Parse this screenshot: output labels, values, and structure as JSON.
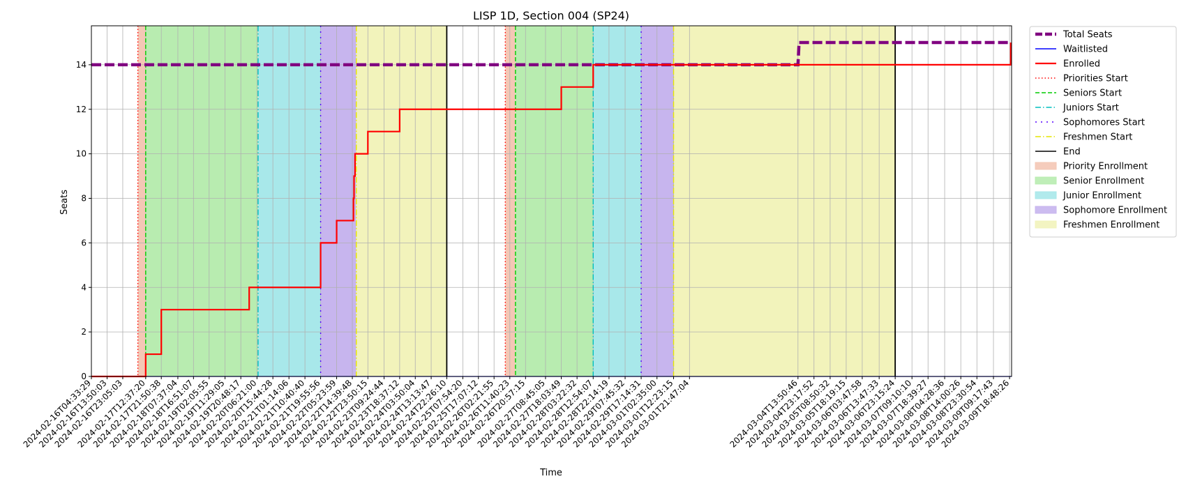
{
  "chart_data": {
    "type": "line",
    "title": "LISP 1D, Section 004 (SP24)",
    "xlabel": "Time",
    "ylabel": "Seats",
    "ylim": [
      0,
      15.75
    ],
    "xlim": [
      "2024-02-16T04:33:29",
      "2024-03-09T20:00:00"
    ],
    "yticks": [
      0,
      2,
      4,
      6,
      8,
      10,
      12,
      14
    ],
    "xticks": [
      "2024-02-16T04:33:29",
      "2024-02-16T13:50:03",
      "2024-02-16T23:05:03",
      "2024-02-17T12:37:20",
      "2024-02-17T21:50:38",
      "2024-02-18T07:37:04",
      "2024-02-18T16:51:07",
      "2024-02-19T02:05:55",
      "2024-02-19T11:29:05",
      "2024-02-19T20:48:17",
      "2024-02-20T06:21:00",
      "2024-02-20T15:44:28",
      "2024-02-21T01:14:06",
      "2024-02-21T10:40:40",
      "2024-02-21T19:55:56",
      "2024-02-22T05:23:59",
      "2024-02-22T14:39:48",
      "2024-02-22T23:50:15",
      "2024-02-23T09:24:44",
      "2024-02-23T18:37:12",
      "2024-02-24T03:50:04",
      "2024-02-24T13:13:47",
      "2024-02-24T22:26:10",
      "2024-02-25T07:54:20",
      "2024-02-25T17:07:12",
      "2024-02-26T02:21:55",
      "2024-02-26T11:40:23",
      "2024-02-26T20:57:15",
      "2024-02-27T08:45:05",
      "2024-02-27T18:03:49",
      "2024-02-28T03:22:32",
      "2024-02-28T12:54:07",
      "2024-02-28T22:14:19",
      "2024-02-29T07:45:32",
      "2024-02-29T17:14:31",
      "2024-03-01T02:35:00",
      "2024-03-01T12:23:15",
      "2024-03-01T21:47:04",
      "2024-03-04T13:50:46",
      "2024-03-04T23:17:52",
      "2024-03-05T08:50:32",
      "2024-03-05T18:19:15",
      "2024-03-06T03:47:58",
      "2024-03-06T13:47:33",
      "2024-03-06T23:15:24",
      "2024-03-07T09:10:10",
      "2024-03-07T18:39:27",
      "2024-03-08T04:28:36",
      "2024-03-08T14:00:26",
      "2024-03-08T23:30:54",
      "2024-03-09T09:17:43",
      "2024-03-09T18:48:26"
    ],
    "series": [
      {
        "name": "Total Seats",
        "color": "#800080",
        "style": "dashed-thick",
        "x": [
          "2024-02-16T04:33:29",
          "2024-03-04T13:50:46",
          "2024-03-04T14:30:00",
          "2024-03-09T20:00:00"
        ],
        "y": [
          14,
          14,
          15,
          15
        ]
      },
      {
        "name": "Waitlisted",
        "color": "#0000ff",
        "style": "solid",
        "x": [
          "2024-02-16T04:33:29",
          "2024-03-09T20:00:00"
        ],
        "y": [
          0,
          0
        ]
      },
      {
        "name": "Enrolled",
        "color": "#ff0000",
        "style": "step",
        "x": [
          "2024-02-16T04:33:29",
          "2024-02-17T12:37:20",
          "2024-02-17T13:30:00",
          "2024-02-17T21:50:38",
          "2024-02-20T01:45:00",
          "2024-02-21T19:55:56",
          "2024-02-22T05:23:59",
          "2024-02-22T15:20:00",
          "2024-02-22T15:40:00",
          "2024-02-22T16:15:00",
          "2024-02-22T23:50:15",
          "2024-02-23T18:37:12",
          "2024-02-27T18:03:49",
          "2024-02-28T12:54:07",
          "2024-03-09T19:30:00"
        ],
        "y": [
          0,
          1,
          1,
          3,
          4,
          6,
          7,
          8,
          9,
          10,
          11,
          12,
          13,
          14,
          15
        ]
      }
    ],
    "markers": [
      {
        "name": "Priorities Start",
        "color": "#ff0000",
        "style": "dotted"
      },
      {
        "name": "Seniors Start",
        "color": "#00cc00",
        "style": "dashed"
      },
      {
        "name": "Juniors Start",
        "color": "#00bfbf",
        "style": "dashdot"
      },
      {
        "name": "Sophomores Start",
        "color": "#5500ff",
        "style": "loosedash"
      },
      {
        "name": "Freshmen Start",
        "color": "#e6e600",
        "style": "dashdot"
      },
      {
        "name": "End",
        "color": "#000000",
        "style": "solid"
      }
    ],
    "regions": [
      {
        "name": "Priority Enrollment",
        "color": "#f4c7b5"
      },
      {
        "name": "Senior Enrollment",
        "color": "#b8ecb0"
      },
      {
        "name": "Junior Enrollment",
        "color": "#a8e8ea"
      },
      {
        "name": "Sophomore Enrollment",
        "color": "#c7b5ee"
      },
      {
        "name": "Freshmen Enrollment",
        "color": "#f2f3bb"
      }
    ],
    "periods": [
      {
        "priorities_start": "2024-02-17T08:00:00",
        "seniors_start": "2024-02-17T12:37:20",
        "juniors_start": "2024-02-20T07:00:00",
        "sophomores_start": "2024-02-21T19:55:56",
        "freshmen_start": "2024-02-22T17:00:00",
        "end": "2024-02-24T22:26:10"
      },
      {
        "priorities_start": "2024-02-26T09:00:00",
        "seniors_start": "2024-02-26T15:00:00",
        "juniors_start": "2024-02-28T12:54:07",
        "sophomores_start": "2024-02-29T17:14:31",
        "freshmen_start": "2024-03-01T12:23:15",
        "end": "2024-03-06T23:15:24"
      }
    ],
    "grid": true,
    "legend_position": "outside-right"
  }
}
